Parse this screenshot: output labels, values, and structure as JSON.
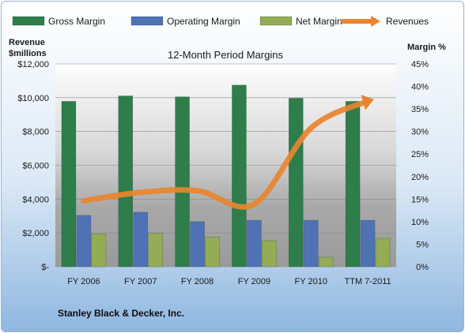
{
  "chart_data": {
    "type": "bar",
    "title": "12-Month Period Margins",
    "categories": [
      "FY 2006",
      "FY 2007",
      "FY 2008",
      "FY 2009",
      "FY 2010",
      "TTM 7-2011"
    ],
    "series": [
      {
        "name": "Gross Margin",
        "axis": "right",
        "values": [
          36.7,
          37.9,
          37.7,
          40.3,
          37.4,
          36.7
        ],
        "color": "#2e7d4b"
      },
      {
        "name": "Operating Margin",
        "axis": "right",
        "values": [
          11.4,
          12.1,
          10.0,
          10.3,
          10.3,
          10.3
        ],
        "color": "#4f72b5"
      },
      {
        "name": "Net Margin",
        "axis": "right",
        "values": [
          7.3,
          7.4,
          6.6,
          5.8,
          2.1,
          6.3
        ],
        "color": "#93ac55"
      },
      {
        "name": "Revenues",
        "axis": "left",
        "type": "line",
        "values": [
          3900,
          4400,
          4500,
          3700,
          8200,
          9800
        ],
        "color": "#e8852f"
      }
    ],
    "left_axis": {
      "label": "Revenue $millions",
      "ylim": [
        0,
        12000
      ],
      "ticks": [
        "$-",
        "$2,000",
        "$4,000",
        "$6,000",
        "$8,000",
        "$10,000",
        "$12,000"
      ]
    },
    "right_axis": {
      "label": "Margin %",
      "ylim": [
        0,
        45
      ],
      "ticks": [
        "0%",
        "5%",
        "10%",
        "15%",
        "20%",
        "25%",
        "30%",
        "35%",
        "40%",
        "45%"
      ]
    },
    "legend_position": "top",
    "footer": "Stanley Black & Decker, Inc."
  }
}
